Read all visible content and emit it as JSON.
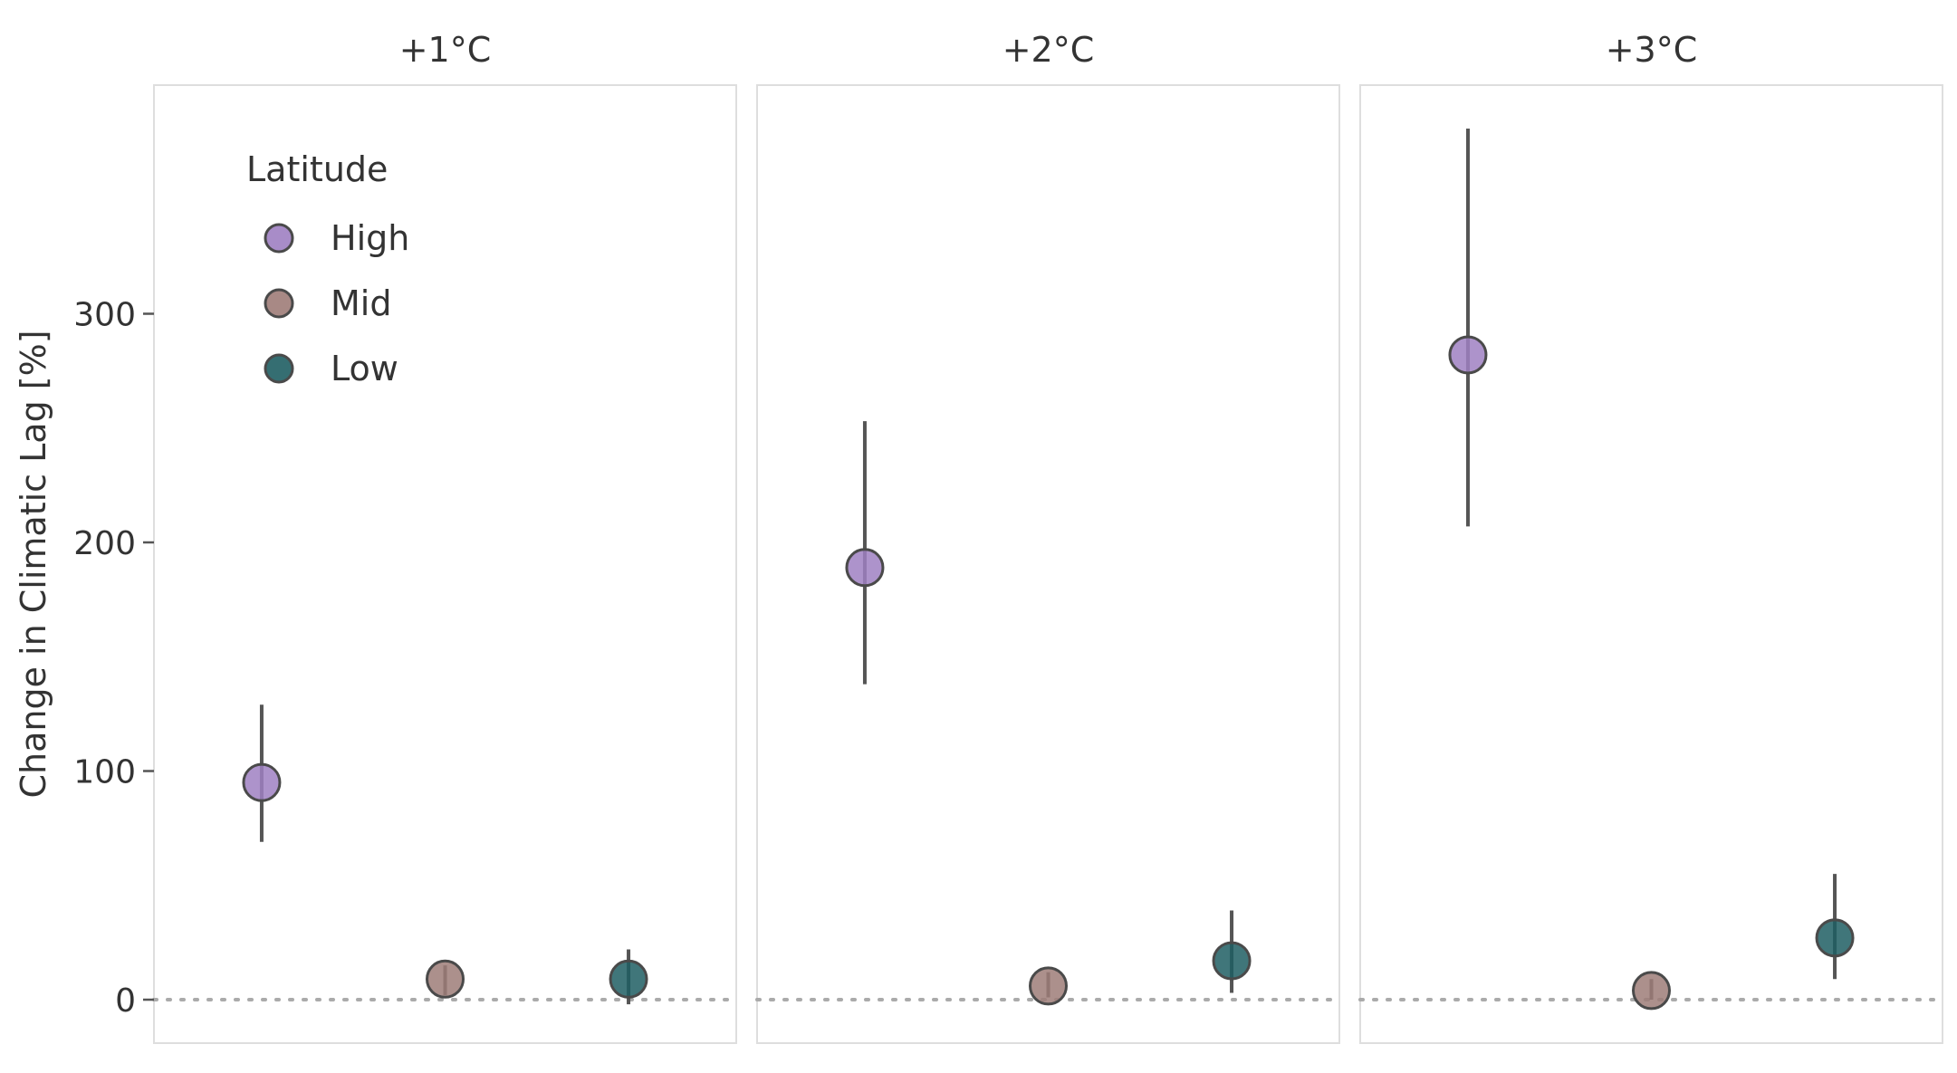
{
  "chart_data": {
    "type": "scatter",
    "facets": [
      "+1°C",
      "+2°C",
      "+3°C"
    ],
    "categories": [
      "High",
      "Mid",
      "Low"
    ],
    "ylabel": "Change in Climatic Lag [%]",
    "xlabel": "",
    "ylim": [
      -19,
      400
    ],
    "yticks": [
      0,
      100,
      200,
      300
    ],
    "reference_line": 0,
    "grid": false,
    "legend": {
      "title": "Latitude",
      "placement": "top-left"
    },
    "series": [
      {
        "name": "High",
        "color": "#9F80C2",
        "values": [
          95,
          189,
          282
        ],
        "lower": [
          69,
          138,
          207
        ],
        "upper": [
          129,
          253,
          381
        ]
      },
      {
        "name": "Mid",
        "color": "#9E7C78",
        "values": [
          9,
          6,
          4
        ],
        "lower": [
          2,
          1,
          0
        ],
        "upper": [
          15,
          12,
          9
        ]
      },
      {
        "name": "Low",
        "color": "#1F5E63",
        "values": [
          9,
          17,
          27
        ],
        "lower": [
          -2,
          3,
          9
        ],
        "upper": [
          22,
          39,
          55
        ]
      }
    ]
  }
}
